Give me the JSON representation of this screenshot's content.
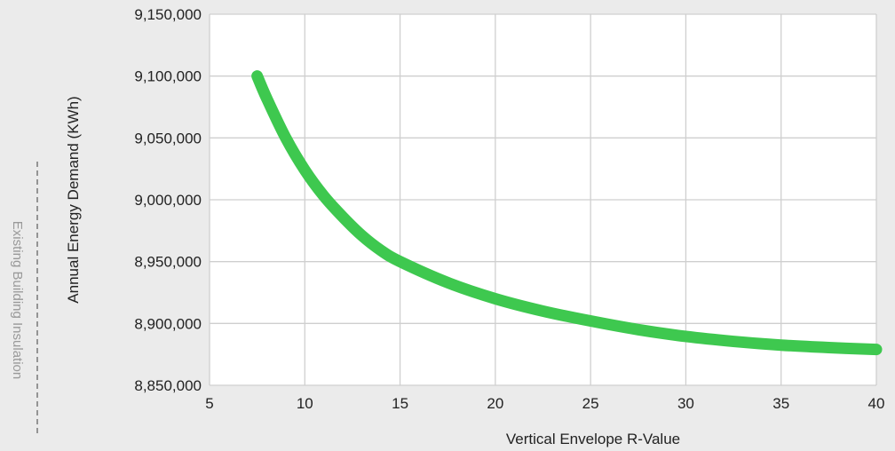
{
  "chart_data": {
    "type": "line",
    "xlabel": "Vertical Envelope R-Value",
    "ylabel": "Annual Energy Demand (KWh)",
    "side_label": "Existing Building Insulation",
    "xlim": [
      5,
      40
    ],
    "ylim": [
      8850000,
      9150000
    ],
    "x_ticks": [
      5,
      10,
      15,
      20,
      25,
      30,
      35,
      40
    ],
    "x_tick_labels": [
      "5",
      "10",
      "15",
      "20",
      "25",
      "30",
      "35",
      "40"
    ],
    "y_ticks": [
      8850000,
      8900000,
      8950000,
      9000000,
      9050000,
      9100000,
      9150000
    ],
    "y_tick_labels": [
      "8,850,000",
      "8,900,000",
      "8,950,000",
      "9,000,000",
      "9,050,000",
      "9,100,000",
      "9,150,000"
    ],
    "grid": true,
    "legend": "none",
    "series": [
      {
        "color": "#3ec84f",
        "x": [
          7.5,
          8,
          9,
          10,
          11,
          12,
          13,
          14,
          15,
          17.5,
          20,
          22.5,
          25,
          27.5,
          30,
          32.5,
          35,
          37.5,
          40
        ],
        "y": [
          9100000,
          9082000,
          9050000,
          9024000,
          9003000,
          8986000,
          8971000,
          8959000,
          8950000,
          8933000,
          8920000,
          8910000,
          8902000,
          8895000,
          8889500,
          8885500,
          8882500,
          8880500,
          8879000
        ]
      }
    ]
  }
}
